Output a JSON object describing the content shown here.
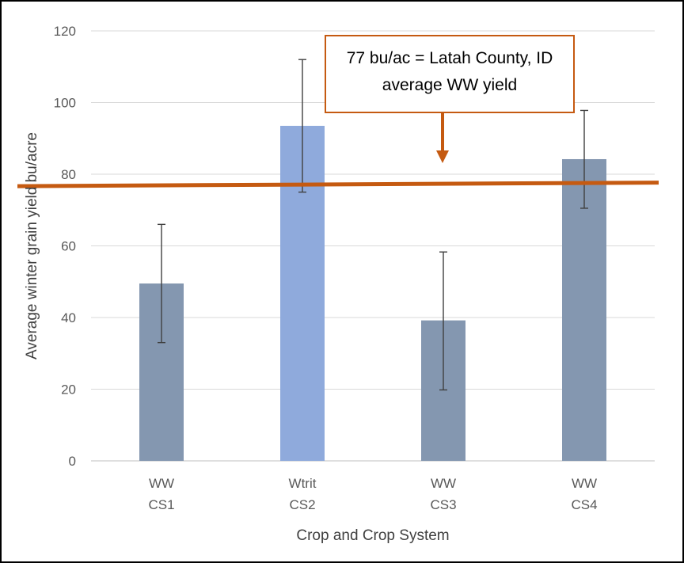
{
  "chart_data": {
    "type": "bar",
    "xlabel": "Crop and Crop System",
    "ylabel": "Average winter grain yield  bu/acre",
    "ylim": [
      0,
      120
    ],
    "yticks": [
      0,
      20,
      40,
      60,
      80,
      100,
      120
    ],
    "grid": true,
    "categories": [
      {
        "crop": "WW",
        "system": "CS1"
      },
      {
        "crop": "Wtrit",
        "system": "CS2"
      },
      {
        "crop": "WW",
        "system": "CS3"
      },
      {
        "crop": "WW",
        "system": "CS4"
      }
    ],
    "values": [
      49.5,
      93.5,
      39.2,
      84.2
    ],
    "error_bars": [
      {
        "low": 33.0,
        "high": 66.0
      },
      {
        "low": 75.0,
        "high": 112.0
      },
      {
        "low": 19.8,
        "high": 58.3
      },
      {
        "low": 70.5,
        "high": 97.8
      }
    ],
    "bar_colors": [
      "#8497b0",
      "#8faadc",
      "#8497b0",
      "#8497b0"
    ],
    "reference_line": {
      "value": 77,
      "color": "#c55a11",
      "label_lines": [
        "77 bu/ac = Latah County, ID",
        "average WW yield"
      ]
    }
  }
}
